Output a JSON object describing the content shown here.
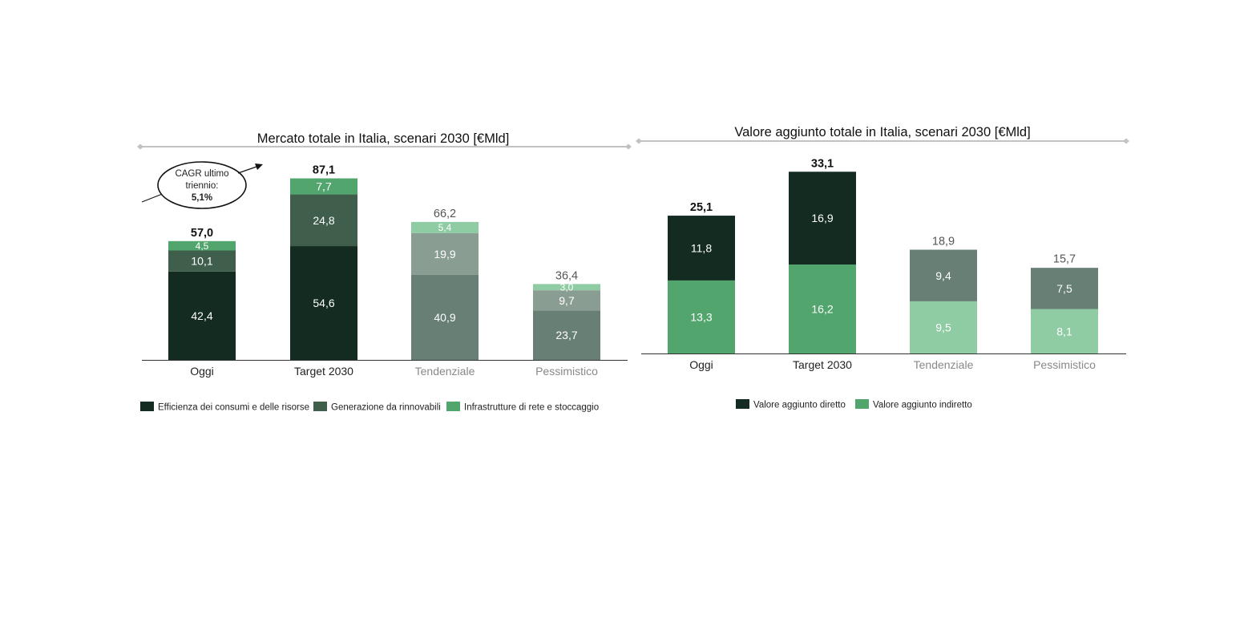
{
  "colors": {
    "c1": "#132b21",
    "c2": "#3f5e4c",
    "c3": "#52a56c",
    "t1": "#687f76",
    "t2": "#8a9d93",
    "t3": "#8fcba3",
    "axis": "#333333",
    "rule": "#c2c2c2",
    "label_dark": "#111111",
    "label_muted": "#888888"
  },
  "chart_data": [
    {
      "type": "bar",
      "stacked": true,
      "title": "Mercato totale in Italia, scenari 2030 [€Mld]",
      "categories": [
        "Oggi",
        "Target 2030",
        "Tendenziale",
        "Pessimistico"
      ],
      "series": [
        {
          "name": "Efficienza dei consumi e delle risorse",
          "values": [
            42.4,
            54.6,
            40.9,
            23.7
          ]
        },
        {
          "name": "Generazione da rinnovabili",
          "values": [
            10.1,
            24.8,
            19.9,
            9.7
          ]
        },
        {
          "name": "Infrastrutture di rete e stoccaggio",
          "values": [
            4.5,
            7.7,
            5.4,
            3.0
          ]
        }
      ],
      "segment_labels": [
        [
          "42,4",
          "10,1",
          "4,5"
        ],
        [
          "54,6",
          "24,8",
          "7,7"
        ],
        [
          "40,9",
          "19,9",
          "5,4"
        ],
        [
          "23,7",
          "9,7",
          "3,0"
        ]
      ],
      "totals": [
        57.0,
        87.1,
        66.2,
        36.4
      ],
      "total_labels": [
        "57,0",
        "87,1",
        "66,2",
        "36,4"
      ],
      "annotation": {
        "line1": "CAGR ultimo",
        "line2": "triennio:",
        "line3": "5,1%"
      },
      "ylim": [
        0,
        90
      ],
      "xlabel": "",
      "ylabel": ""
    },
    {
      "type": "bar",
      "stacked": true,
      "title": "Valore aggiunto totale in Italia, scenari 2030 [€Mld]",
      "categories": [
        "Oggi",
        "Target 2030",
        "Tendenziale",
        "Pessimistico"
      ],
      "series": [
        {
          "name": "Valore aggiunto indiretto",
          "values": [
            13.3,
            16.2,
            9.5,
            8.1
          ]
        },
        {
          "name": "Valore aggiunto diretto",
          "values": [
            11.8,
            16.9,
            9.4,
            7.5
          ]
        }
      ],
      "segment_labels": [
        [
          "13,3",
          "11,8"
        ],
        [
          "16,2",
          "16,9"
        ],
        [
          "9,5",
          "9,4"
        ],
        [
          "8,1",
          "7,5"
        ]
      ],
      "totals": [
        25.1,
        33.1,
        18.9,
        15.7
      ],
      "total_labels": [
        "25,1",
        "33,1",
        "18,9",
        "15,7"
      ],
      "legend": [
        "Valore aggiunto diretto",
        "Valore aggiunto indiretto"
      ],
      "ylim": [
        0,
        35
      ],
      "xlabel": "",
      "ylabel": ""
    }
  ]
}
